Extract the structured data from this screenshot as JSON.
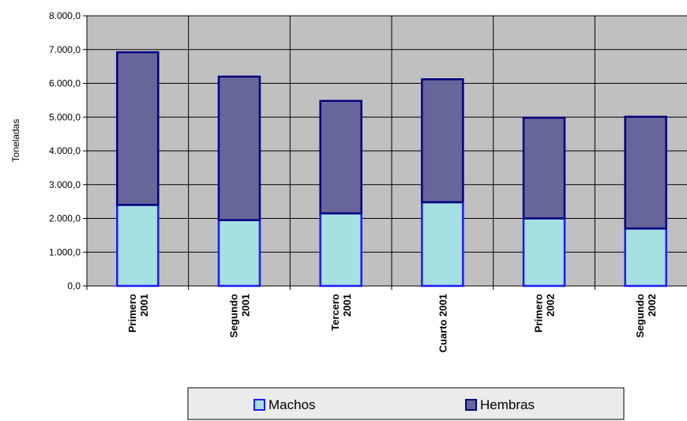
{
  "chart_data": {
    "type": "bar",
    "stacked": true,
    "title": "",
    "xlabel": "",
    "ylabel": "Toneladas",
    "ylim": [
      0,
      8000
    ],
    "yticks": [
      "0,0",
      "1.000,0",
      "2.000,0",
      "3.000,0",
      "4.000,0",
      "5.000,0",
      "6.000,0",
      "7.000,0",
      "8.000,0"
    ],
    "categories": [
      [
        "Primero",
        "2001"
      ],
      [
        "Segundo",
        "2001"
      ],
      [
        "Tercero",
        "2001"
      ],
      [
        "Cuarto 2001"
      ],
      [
        "Primero",
        "2002"
      ],
      [
        "Segundo",
        "2002"
      ]
    ],
    "series": [
      {
        "name": "Machos",
        "color": "#a6e0e2",
        "border": "#1a1aff",
        "values": [
          2400,
          1950,
          2150,
          2480,
          2000,
          1700
        ]
      },
      {
        "name": "Hembras",
        "color": "#66669a",
        "border": "#000080",
        "values": [
          4520,
          4250,
          3330,
          3640,
          2980,
          3310
        ]
      }
    ],
    "grid": true,
    "plot_background": "#c0c0c0",
    "legend_position": "bottom"
  }
}
